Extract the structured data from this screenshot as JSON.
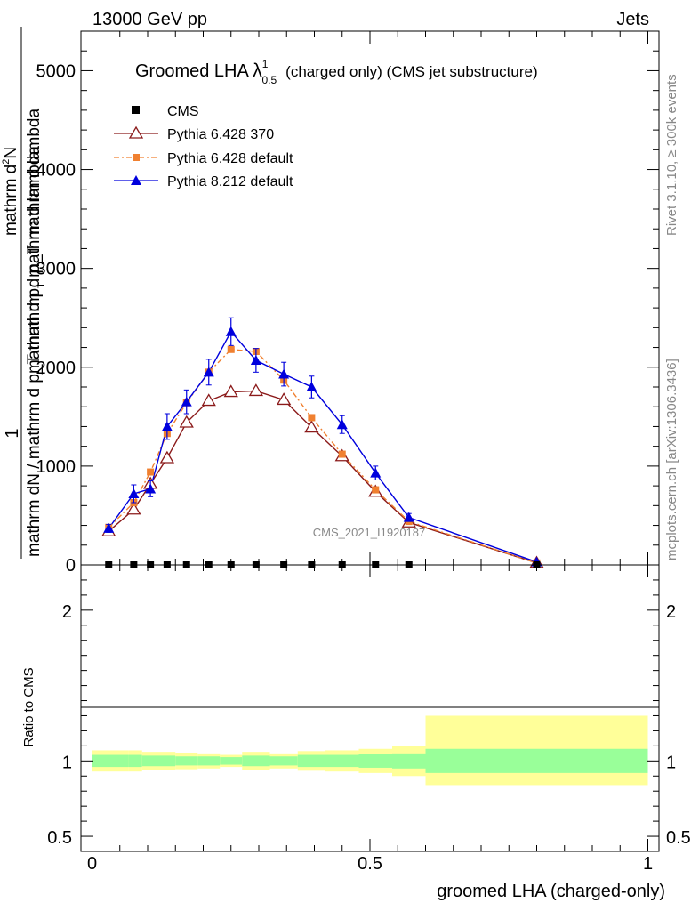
{
  "header": {
    "left": "13000 GeV pp",
    "right": "Jets"
  },
  "side": {
    "rivet": "Rivet 3.1.10, ≥ 300k events",
    "mcplots": "mcplots.cern.ch [arXiv:1306.3436]"
  },
  "watermark": "CMS_2021_I1920187",
  "chart_data": {
    "type": "line",
    "title": {
      "prefix": "Groomed LHA ",
      "symbol": "λ",
      "sup": "1",
      "sub": "0.5",
      "suffix": "(charged only) (CMS jet substructure)"
    },
    "xlabel": "groomed LHA (charged-only)",
    "ylabel_top": "1",
    "ylabel_main": "mathrm dN / mathrm d p_T mathrm d p_T mathrm d lambda",
    "ylabel_frac_num": "mathrm d^{2}N",
    "ylabel_frac_den": "mathrm dN / mathrm d p_T mathrm d p_T mathrm d lambda",
    "ylabel_full": "1/(mathrm dN / mathrm d p_T) mathrm d^2N / (mathrm d p_T mathrm d lambda)",
    "xlim": [
      -0.02,
      1.02
    ],
    "ylim": [
      0,
      5400
    ],
    "yticks": [
      0,
      1000,
      2000,
      3000,
      4000,
      5000
    ],
    "ytick_labels": [
      "0",
      "1000",
      "2000",
      "3000",
      "4000",
      "5000"
    ],
    "xticks": [
      0,
      0.5,
      1
    ],
    "xtick_labels": [
      "0",
      "0.5",
      "1"
    ],
    "x": [
      0.03,
      0.075,
      0.105,
      0.135,
      0.17,
      0.21,
      0.25,
      0.295,
      0.345,
      0.395,
      0.45,
      0.51,
      0.57,
      0.8
    ],
    "series": [
      {
        "name": "CMS",
        "marker": "square",
        "color": "#000000",
        "values": [
          0,
          0,
          0,
          0,
          0,
          0,
          0,
          0,
          0,
          0,
          0,
          0,
          0,
          0
        ]
      },
      {
        "name": "Pythia 6.428 370",
        "marker": "open-triangle",
        "color": "#8b1a1a",
        "dash": "",
        "values": [
          340,
          560,
          820,
          1080,
          1440,
          1660,
          1750,
          1760,
          1670,
          1390,
          1100,
          740,
          430,
          20
        ]
      },
      {
        "name": "Pythia 6.428 default",
        "marker": "filled-square",
        "color": "#f08030",
        "dash": "6,3,2,3",
        "values": [
          380,
          630,
          940,
          1330,
          1640,
          1950,
          2180,
          2160,
          1870,
          1490,
          1120,
          760,
          440,
          20
        ]
      },
      {
        "name": "Pythia 8.212 default",
        "marker": "filled-triangle",
        "color": "#0000dd",
        "dash": "",
        "values": [
          370,
          720,
          770,
          1400,
          1650,
          1950,
          2360,
          2070,
          1930,
          1800,
          1420,
          930,
          480,
          30
        ],
        "errors": [
          40,
          90,
          80,
          130,
          120,
          130,
          140,
          120,
          120,
          110,
          90,
          70,
          40,
          10
        ]
      }
    ],
    "ratio": {
      "ylabel": "Ratio to CMS",
      "ylim": [
        0.4,
        2.3
      ],
      "yticks": [
        0.5,
        1,
        2
      ],
      "ytick_labels": [
        "0.5",
        "1",
        "2"
      ],
      "bins": [
        [
          0.0,
          0.065,
          0.93,
          1.07,
          0.96,
          1.04
        ],
        [
          0.065,
          0.09,
          0.93,
          1.07,
          0.96,
          1.04
        ],
        [
          0.09,
          0.12,
          0.94,
          1.06,
          0.965,
          1.035
        ],
        [
          0.12,
          0.15,
          0.94,
          1.06,
          0.965,
          1.035
        ],
        [
          0.15,
          0.19,
          0.945,
          1.055,
          0.97,
          1.03
        ],
        [
          0.19,
          0.23,
          0.95,
          1.05,
          0.97,
          1.03
        ],
        [
          0.23,
          0.27,
          0.96,
          1.04,
          0.975,
          1.025
        ],
        [
          0.27,
          0.32,
          0.94,
          1.06,
          0.965,
          1.035
        ],
        [
          0.32,
          0.37,
          0.95,
          1.05,
          0.97,
          1.03
        ],
        [
          0.37,
          0.42,
          0.935,
          1.065,
          0.96,
          1.04
        ],
        [
          0.42,
          0.48,
          0.93,
          1.07,
          0.96,
          1.04
        ],
        [
          0.48,
          0.54,
          0.92,
          1.08,
          0.955,
          1.045
        ],
        [
          0.54,
          0.6,
          0.9,
          1.1,
          0.95,
          1.05
        ],
        [
          0.6,
          1.0,
          0.84,
          1.3,
          0.92,
          1.08
        ]
      ],
      "band_colors": {
        "outer": "#ffff99",
        "inner": "#99ff99"
      }
    }
  }
}
